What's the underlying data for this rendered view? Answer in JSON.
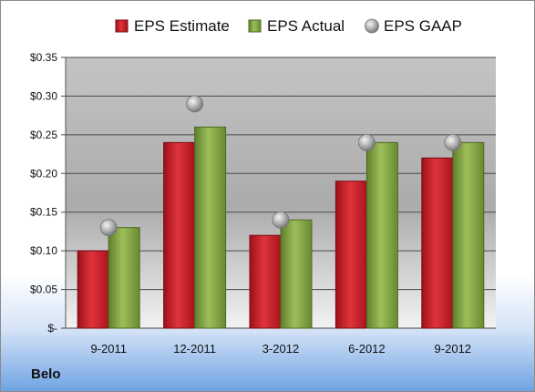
{
  "company": "Belo",
  "colors": {
    "estimate": "#d0202a",
    "actual": "#8aad4a",
    "gaap": "#a8a8a8"
  },
  "chart_data": {
    "type": "bar",
    "title": "",
    "xlabel": "",
    "ylabel": "",
    "ylim": [
      0,
      0.35
    ],
    "y_ticks": [
      0,
      0.05,
      0.1,
      0.15,
      0.2,
      0.25,
      0.3,
      0.35
    ],
    "y_tick_labels": [
      "$-",
      "$0.05",
      "$0.10",
      "$0.15",
      "$0.20",
      "$0.25",
      "$0.30",
      "$0.35"
    ],
    "categories": [
      "9-2011",
      "12-2011",
      "3-2012",
      "6-2012",
      "9-2012"
    ],
    "legend_position": "top",
    "grid": true,
    "series": [
      {
        "name": "EPS Estimate",
        "kind": "bar",
        "values": [
          0.1,
          0.24,
          0.12,
          0.19,
          0.22
        ]
      },
      {
        "name": "EPS Actual",
        "kind": "bar",
        "values": [
          0.13,
          0.26,
          0.14,
          0.24,
          0.24
        ]
      },
      {
        "name": "EPS GAAP",
        "kind": "marker",
        "values": [
          0.13,
          0.29,
          0.14,
          0.24,
          0.24
        ]
      }
    ]
  }
}
